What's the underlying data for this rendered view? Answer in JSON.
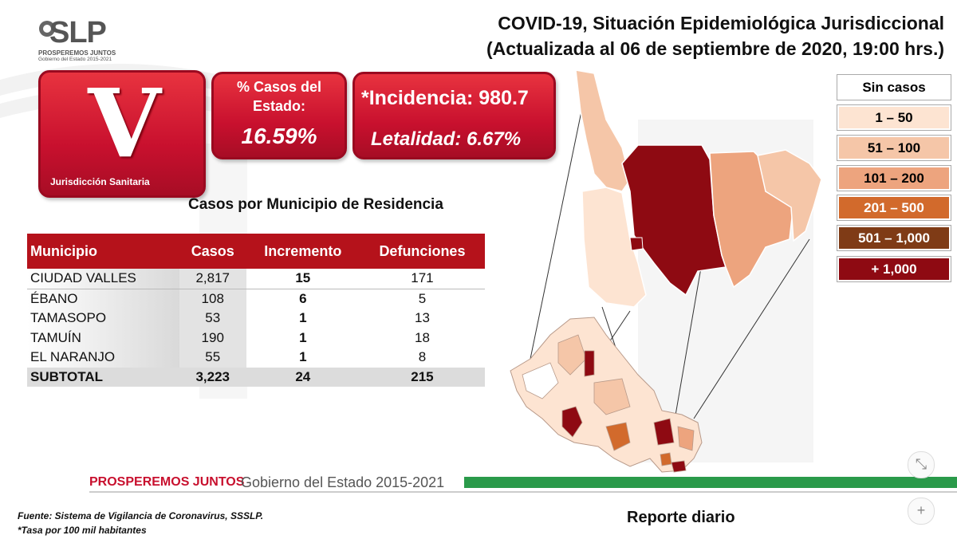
{
  "header": {
    "logo_text": "SLP",
    "logo_sub1": "PROSPEREMOS JUNTOS",
    "logo_sub2": "Gobierno del Estado 2015-2021",
    "title_line1": "COVID-19, Situación Epidemiológica Jurisdiccional",
    "title_line2": "(Actualizada al 06 de septiembre de 2020, 19:00 hrs.)"
  },
  "jurisdiction": {
    "letter": "V",
    "label": "Jurisdicción Sanitaria"
  },
  "stats": {
    "pct_label": "% Casos del Estado:",
    "pct_value": "16.59%",
    "incidence": "*Incidencia: 980.7",
    "lethality": "Letalidad: 6.67%"
  },
  "table": {
    "title": "Casos por Municipio  de Residencia",
    "headers": [
      "Municipio",
      "Casos",
      "Incremento",
      "Defunciones"
    ],
    "rows": [
      [
        "CIUDAD VALLES",
        "2,817",
        "15",
        "171"
      ],
      [
        "ÉBANO",
        "108",
        "6",
        "5"
      ],
      [
        "TAMASOPO",
        "53",
        "1",
        "13"
      ],
      [
        "TAMUÍN",
        "190",
        "1",
        "18"
      ],
      [
        "EL NARANJO",
        "55",
        "1",
        "8"
      ]
    ],
    "subtotal": [
      "SUBTOTAL",
      "3,223",
      "24",
      "215"
    ]
  },
  "legend": [
    {
      "label": "Sin casos",
      "color": "#ffffff"
    },
    {
      "label": "1 – 50",
      "color": "#fde4d2"
    },
    {
      "label": "51 – 100",
      "color": "#f5c6a8"
    },
    {
      "label": "101 – 200",
      "color": "#eda47e"
    },
    {
      "label": "201 – 500",
      "color": "#d26a2c"
    },
    {
      "label": "501 – 1,000",
      "color": "#7f3b16"
    },
    {
      "label": "+ 1,000",
      "color": "#8e0a12"
    }
  ],
  "footer": {
    "brand": "PROSPEREMOS JUNTOS",
    "gov": "Gobierno del Estado 2015-2021",
    "source": "Fuente: Sistema de Vigilancia de Coronavirus, SSSLP.",
    "rate_note": "*Tasa por 100 mil habitantes",
    "report": "Reporte diario"
  },
  "controls": {
    "fit_icon": "⤡",
    "zoom_icon": "+"
  }
}
